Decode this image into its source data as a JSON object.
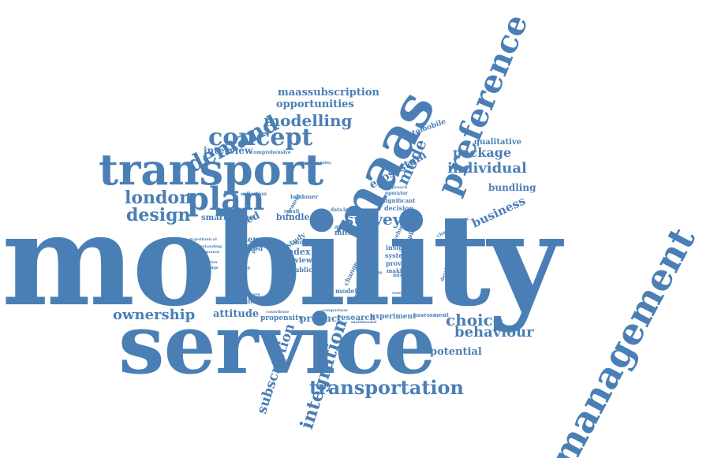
{
  "words": [
    "mobility",
    "service",
    "management",
    "maas",
    "transport",
    "preference",
    "transportation",
    "plan",
    "concept",
    "demand",
    "integration",
    "subscription",
    "modelling",
    "london",
    "design",
    "individual",
    "choice",
    "behaviour",
    "business",
    "survey",
    "package",
    "mode",
    "ecosystem",
    "ownership",
    "attitude",
    "product",
    "research",
    "potential",
    "bundling",
    "qualitative",
    "opportunities",
    "maassubscription",
    "interview",
    "automobile",
    "index",
    "review",
    "public",
    "bundle",
    "stated",
    "scheme",
    "method",
    "smartphone",
    "feasibility",
    "respondent",
    "propensity",
    "experiment",
    "assessment",
    "model",
    "analysis",
    "micro",
    "more",
    "study",
    "paper",
    "system",
    "provide",
    "making",
    "insight",
    "decision",
    "significant",
    "element",
    "result",
    "collection",
    "comprehensive",
    "exploring",
    "vehicle",
    "developing",
    "characteristic",
    "dictionary",
    "urban",
    "change",
    "area",
    "data",
    "impact",
    "operator",
    "approach",
    "londoner",
    "mixed",
    "essential",
    "transferability",
    "multimodal",
    "contribute",
    "comparison",
    "group",
    "application",
    "phenomenon",
    "understanding",
    "hypothetical",
    "knowledge",
    "willing",
    "policy"
  ]
}
